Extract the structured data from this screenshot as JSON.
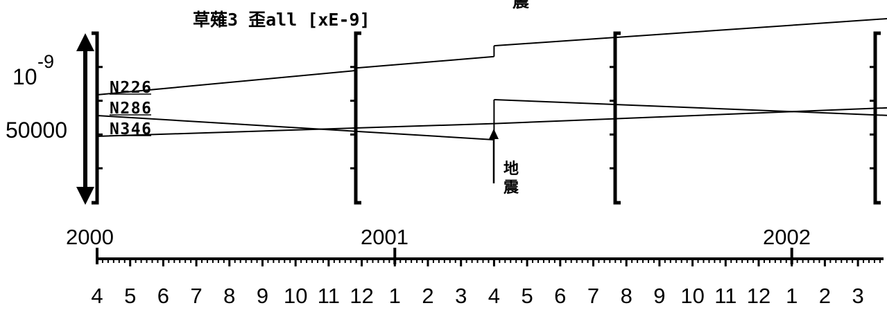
{
  "chart_data": {
    "type": "line",
    "title": "草薙3 歪all [xE-9]",
    "top_cut_text": "震",
    "scale": {
      "label_base": "10",
      "label_exp": "-9",
      "label_value": "50000"
    },
    "x_axis": {
      "start": "2000-04",
      "end": "2002-03",
      "year_labels": [
        "2000",
        "2001",
        "2002"
      ],
      "month_labels": [
        "4",
        "5",
        "6",
        "7",
        "8",
        "9",
        "10",
        "11",
        "12",
        "1",
        "2",
        "3",
        "4",
        "5",
        "6",
        "7",
        "8",
        "9",
        "10",
        "11",
        "12",
        "1",
        "2",
        "3"
      ]
    },
    "event": {
      "label": "地震",
      "label_chars": [
        "地",
        "震"
      ],
      "month_index": 12
    },
    "series": [
      {
        "name": "N226",
        "segments": [
          {
            "x": [
              0.0,
              7.8
            ],
            "y": [
              0.0,
              0.38
            ]
          },
          {
            "x": [
              7.8,
              12.0
            ],
            "y": [
              0.42,
              0.6
            ]
          },
          {
            "x": [
              12.0,
              24.0
            ],
            "y": [
              0.77,
              1.2
            ]
          }
        ]
      },
      {
        "name": "N286",
        "segments": [
          {
            "x": [
              0.0,
              12.0
            ],
            "y": [
              0.0,
              -0.38
            ]
          },
          {
            "x": [
              12.0,
              24.0
            ],
            "y": [
              0.25,
              0.0
            ]
          }
        ]
      },
      {
        "name": "N346",
        "segments": [
          {
            "x": [
              0.0,
              12.0
            ],
            "y": [
              0.0,
              0.2
            ]
          },
          {
            "x": [
              12.0,
              24.0
            ],
            "y": [
              0.2,
              0.45
            ]
          }
        ]
      }
    ]
  }
}
